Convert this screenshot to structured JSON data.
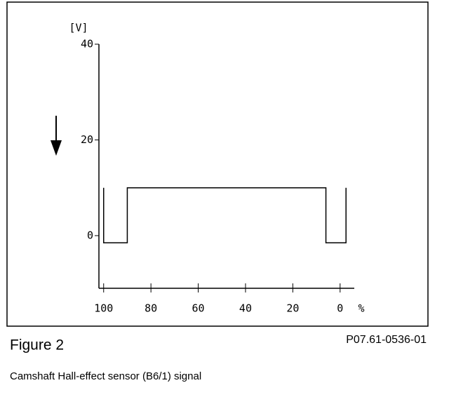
{
  "chart_data": {
    "type": "line",
    "y_label": "[V]",
    "x_label": "%",
    "figure_label": "Figure 2",
    "code": "P07.61-0536-01",
    "caption": "Camshaft Hall-effect sensor (B6/1) signal",
    "x": [
      100,
      100,
      90,
      90,
      6,
      6,
      -2.5,
      -2.5
    ],
    "series": [
      {
        "name": "signal",
        "color": "#000000",
        "values": [
          10,
          -1.5,
          -1.5,
          10,
          10,
          -1.5,
          -1.5,
          10
        ]
      }
    ],
    "xlim": [
      102,
      -6
    ],
    "ylim": [
      -11,
      40
    ],
    "xticks": [
      100,
      80,
      60,
      40,
      20,
      0
    ],
    "yticks": [
      0,
      20,
      40
    ]
  }
}
